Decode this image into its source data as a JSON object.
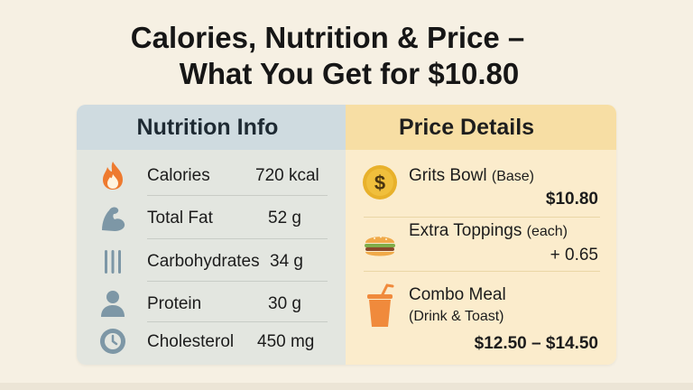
{
  "title": {
    "line1": "Calories, Nutrition & Price –",
    "line2": "What You Get for $10.80"
  },
  "nutrition": {
    "heading": "Nutrition Info",
    "rows": [
      {
        "label": "Calories",
        "value": "720 kcal",
        "icon": "flame-icon"
      },
      {
        "label": "Total Fat",
        "value": "52 g",
        "icon": "flexed-arm-icon"
      },
      {
        "label": "Carbohydrates",
        "value": "34 g",
        "icon": "wheat-stalks-icon"
      },
      {
        "label": "Protein",
        "value": "30 g",
        "icon": "person-icon"
      },
      {
        "label": "Cholesterol",
        "value": "450 mg",
        "icon": "clock-icon"
      }
    ]
  },
  "price": {
    "heading": "Price Details",
    "rows": [
      {
        "label": "Grits Bowl",
        "sub": "(Base)",
        "price": "$10.80",
        "icon": "dollar-coin-icon"
      },
      {
        "label": "Extra Toppings",
        "sub": "(each)",
        "price": "+ 0.65",
        "icon": "burger-icon"
      },
      {
        "label": "Combo Meal",
        "sub": "(Drink & Toast)",
        "price": "$12.50 – $14.50",
        "icon": "drink-cup-icon"
      }
    ]
  },
  "colors": {
    "left_header": "#cfdbe0",
    "right_header": "#f7dea4",
    "flame": "#ee7a2f",
    "slate_icon": "#7d97a6",
    "coin": "#e8b12b",
    "cup": "#f08a3c"
  }
}
